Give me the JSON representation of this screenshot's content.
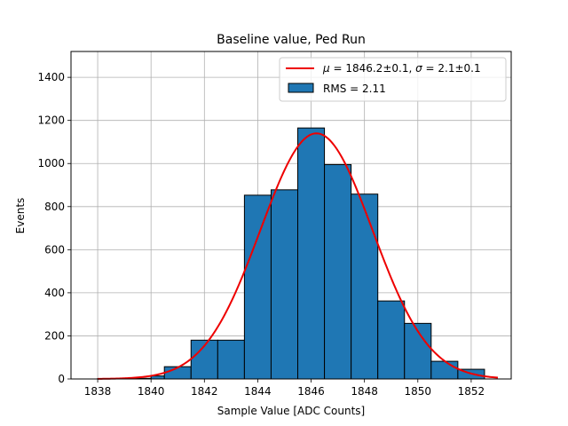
{
  "chart_data": {
    "type": "bar",
    "title": "Baseline value, Ped Run",
    "xlabel": "Sample Value [ADC Counts]",
    "ylabel": "Events",
    "xlim": [
      1837.0,
      1853.5
    ],
    "ylim": [
      0,
      1520
    ],
    "xticks": [
      1838,
      1840,
      1842,
      1844,
      1846,
      1848,
      1850,
      1852
    ],
    "yticks": [
      0,
      200,
      400,
      600,
      800,
      1000,
      1200,
      1400
    ],
    "grid": true,
    "legend_position": "top-right",
    "bar_color": "#1f77b4",
    "bar_edge_color": "#000000",
    "histogram": {
      "name": "RMS = 2.11",
      "bin_edges": [
        1838,
        1839,
        1840,
        1840.5,
        1841.5,
        1842.5,
        1843.5,
        1844.5,
        1845.5,
        1846.5,
        1847.5,
        1848.5,
        1849.5,
        1850.5,
        1851.5,
        1852.5
      ],
      "counts": [
        2,
        3,
        14,
        57,
        180,
        180,
        853,
        878,
        1165,
        995,
        858,
        362,
        258,
        82,
        45
      ]
    },
    "fit": {
      "name": "$\\mu = 1846.2\\pm0.1$, $\\sigma = 2.1\\pm0.1$",
      "legend_parts": [
        "μ",
        " = 1846.2±0.1, ",
        "σ",
        " = 2.1±0.1"
      ],
      "color": "#ee0000",
      "mu": 1846.2,
      "sigma": 2.1,
      "amplitude": 1140,
      "x_range": [
        1838,
        1853
      ]
    }
  }
}
